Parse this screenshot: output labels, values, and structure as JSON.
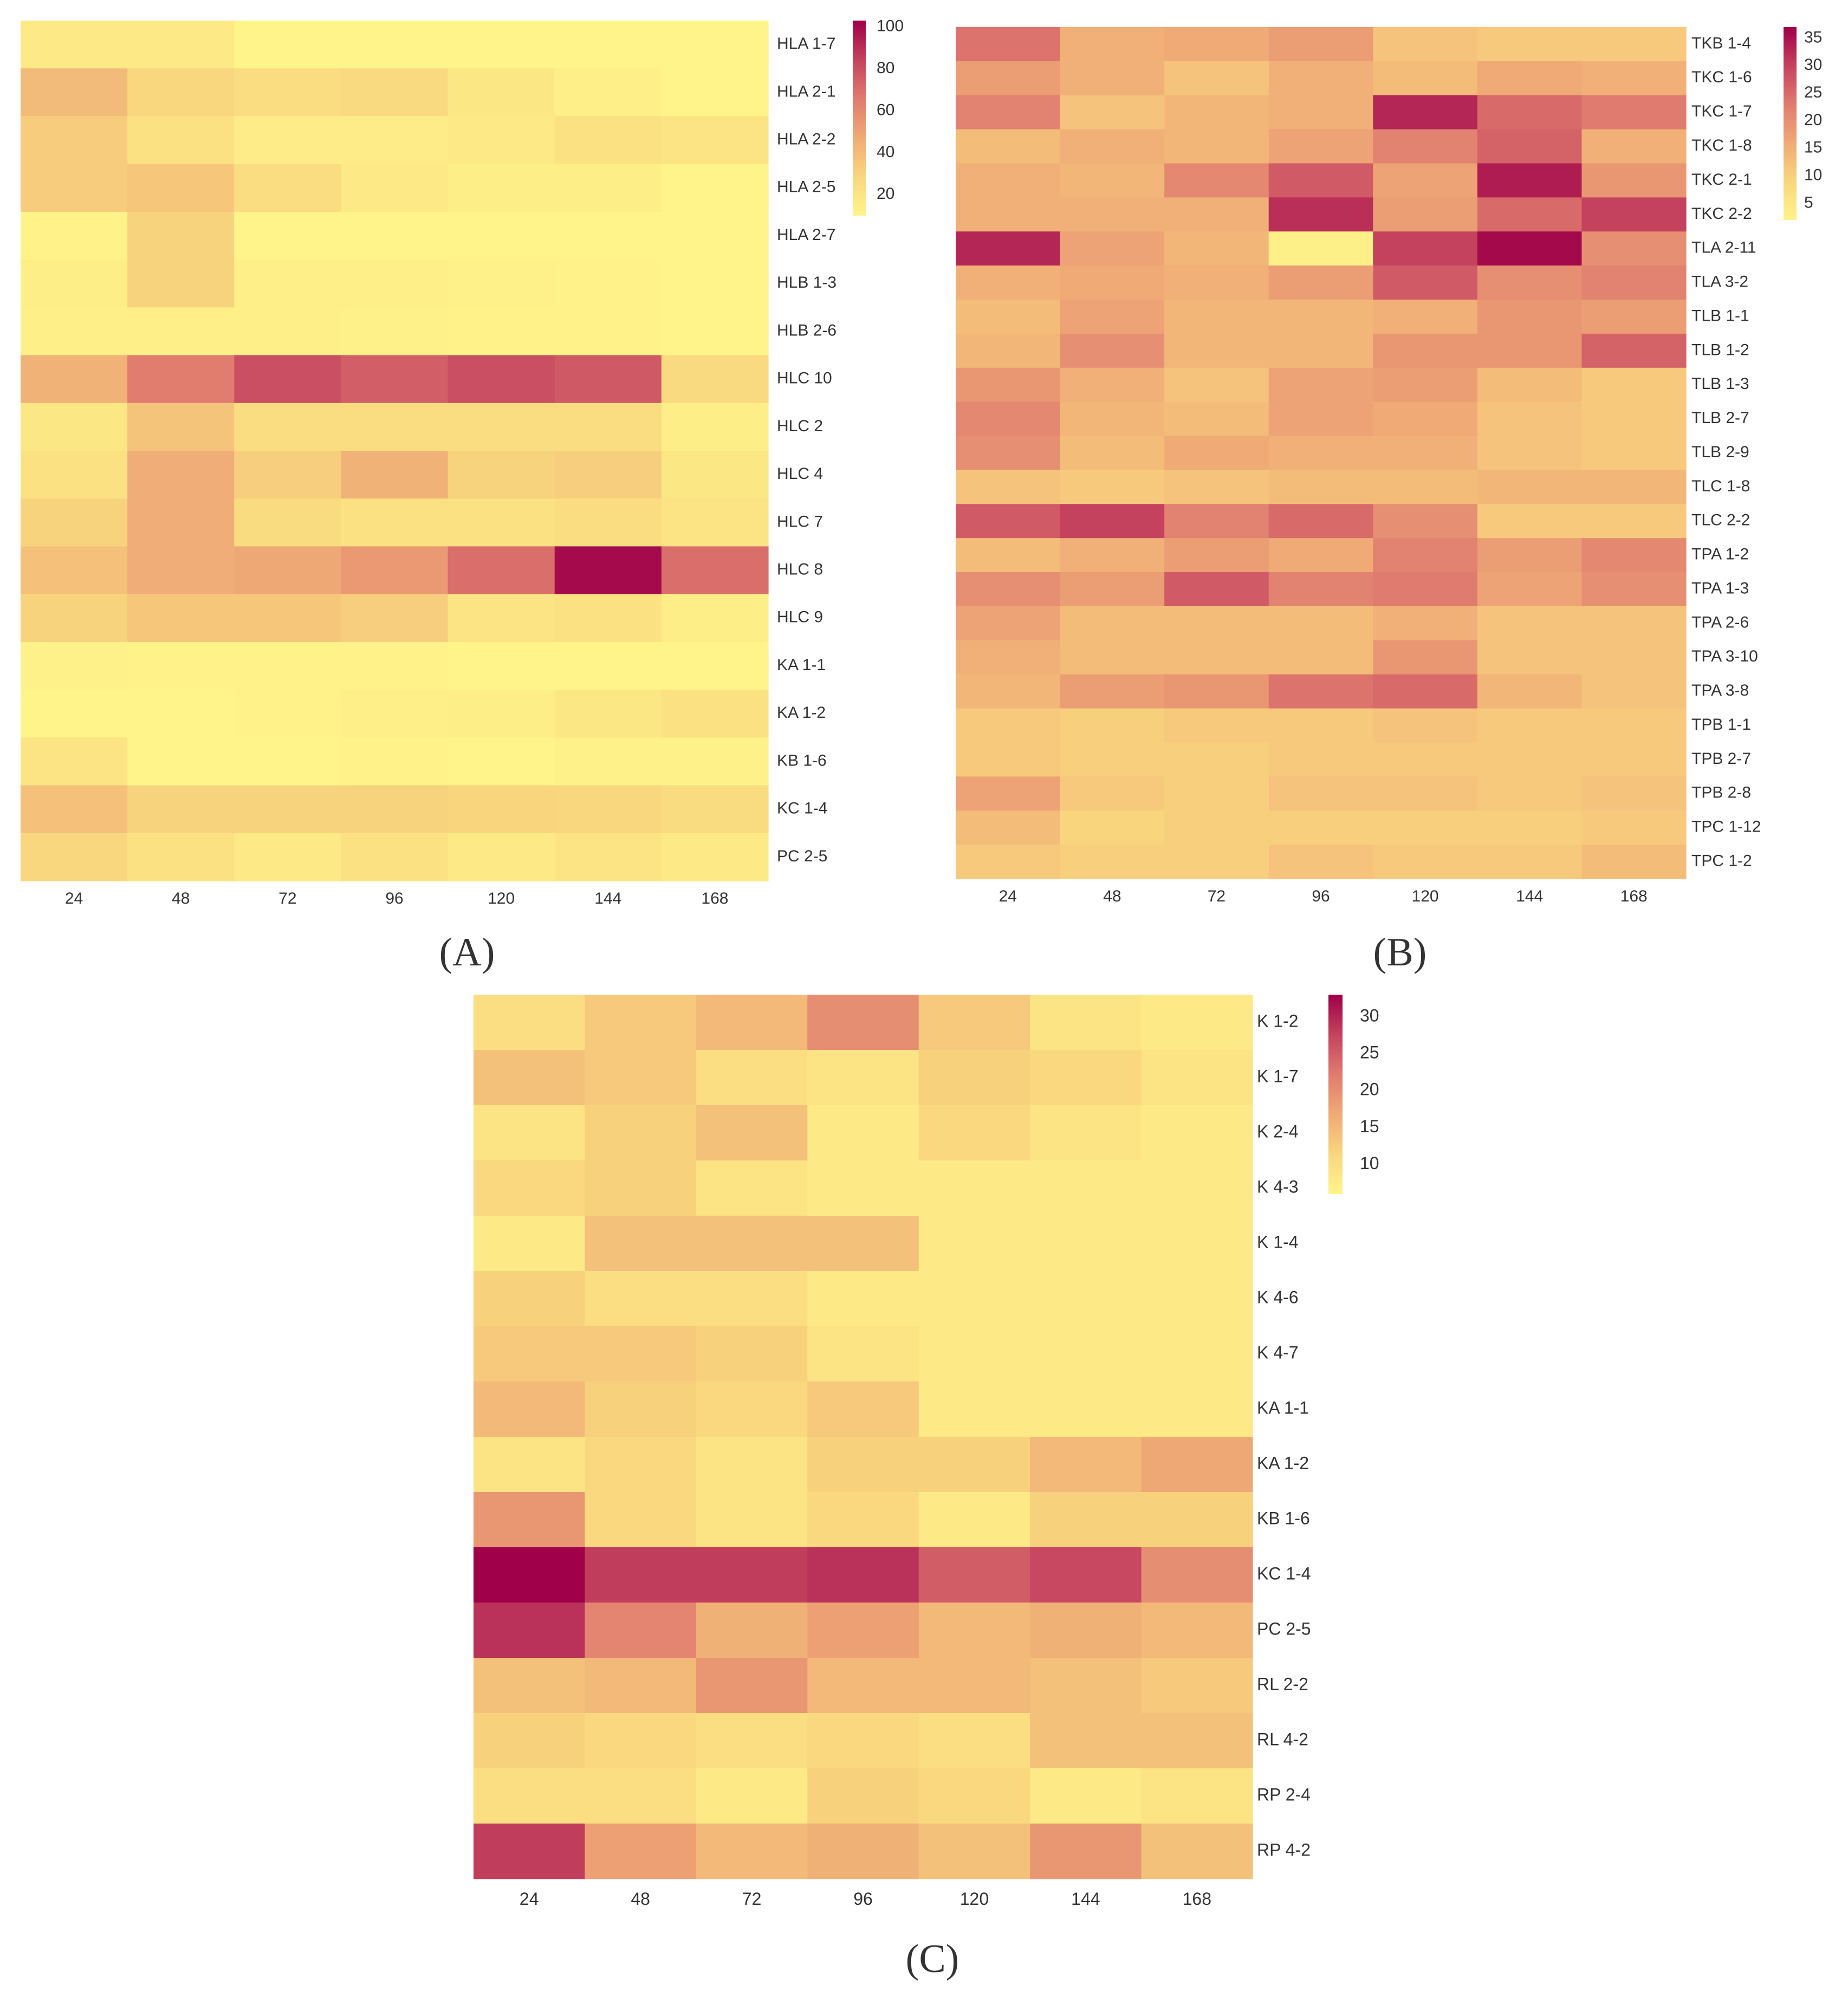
{
  "figure": {
    "panel_labels": [
      "(A)",
      "(B)",
      "(C)"
    ]
  },
  "colormap": [
    "#fff48a",
    "#f9d67e",
    "#efaa76",
    "#e07b6f",
    "#c4425e",
    "#9f0049"
  ],
  "chart_data": [
    {
      "type": "heatmap",
      "panel": "A",
      "x": [
        "24",
        "48",
        "72",
        "96",
        "120",
        "144",
        "168"
      ],
      "y": [
        "HLA 1-7",
        "HLA 2-1",
        "HLA 2-2",
        "HLA 2-5",
        "HLA 2-7",
        "HLB 1-3",
        "HLB 2-6",
        "HLC 10",
        "HLC 2",
        "HLC 4",
        "HLC 7",
        "HLC 8",
        "HLC 9",
        "KA 1-1",
        "KA 1-2",
        "KB 1-6",
        "KC 1-4",
        "PC 2-5"
      ],
      "values": [
        [
          16,
          16,
          10,
          9,
          9,
          9,
          9
        ],
        [
          40,
          28,
          24,
          26,
          18,
          13,
          10
        ],
        [
          33,
          22,
          15,
          15,
          16,
          22,
          20
        ],
        [
          33,
          35,
          24,
          17,
          14,
          14,
          9
        ],
        [
          11,
          30,
          9,
          9,
          9,
          9,
          9
        ],
        [
          14,
          30,
          13,
          13,
          12,
          11,
          10
        ],
        [
          13,
          13,
          13,
          12,
          11,
          11,
          10
        ],
        [
          44,
          65,
          80,
          75,
          80,
          77,
          26
        ],
        [
          18,
          36,
          24,
          24,
          24,
          24,
          14
        ],
        [
          22,
          46,
          32,
          44,
          30,
          32,
          18
        ],
        [
          30,
          46,
          25,
          22,
          22,
          24,
          20
        ],
        [
          38,
          46,
          48,
          54,
          70,
          100,
          70
        ],
        [
          30,
          35,
          35,
          32,
          20,
          22,
          14
        ],
        [
          12,
          11,
          11,
          11,
          8,
          8,
          8
        ],
        [
          10,
          10,
          11,
          13,
          14,
          18,
          22
        ],
        [
          20,
          10,
          8,
          11,
          9,
          12,
          12
        ],
        [
          38,
          30,
          30,
          30,
          29,
          28,
          25
        ],
        [
          28,
          22,
          16,
          22,
          16,
          20,
          16
        ]
      ],
      "colorbar": {
        "min": 10,
        "max": 103,
        "ticks": [
          20,
          40,
          60,
          80,
          100
        ]
      }
    },
    {
      "type": "heatmap",
      "panel": "B",
      "x": [
        "24",
        "48",
        "72",
        "96",
        "120",
        "144",
        "168"
      ],
      "y": [
        "TKB 1-4",
        "TKC 1-6",
        "TKC 1-7",
        "TKC 1-8",
        "TKC 2-1",
        "TKC 2-2",
        "TLA 2-11",
        "TLA 3-2",
        "TLB 1-1",
        "TLB 1-2",
        "TLB 1-3",
        "TLB 2-7",
        "TLB 2-9",
        "TLC 1-8",
        "TLC 2-2",
        "TPA 1-2",
        "TPA 1-3",
        "TPA 2-6",
        "TPA 3-10",
        "TPA 3-8",
        "TPB 1-1",
        "TPB 2-7",
        "TPB 2-8",
        "TPC 1-12",
        "TPC 1-2"
      ],
      "values": [
        [
          24,
          15,
          16,
          18,
          12,
          11,
          11
        ],
        [
          18,
          15,
          12,
          15,
          13,
          16,
          15
        ],
        [
          22,
          12,
          14,
          15,
          33,
          25,
          23
        ],
        [
          13,
          15,
          14,
          17,
          22,
          26,
          15
        ],
        [
          15,
          14,
          21,
          27,
          17,
          34,
          19
        ],
        [
          15,
          15,
          15,
          32,
          18,
          25,
          30
        ],
        [
          33,
          17,
          14,
          3,
          30,
          36,
          20
        ],
        [
          15,
          16,
          15,
          18,
          27,
          20,
          22
        ],
        [
          13,
          17,
          14,
          14,
          15,
          19,
          18
        ],
        [
          14,
          20,
          14,
          14,
          19,
          19,
          26
        ],
        [
          19,
          15,
          12,
          17,
          18,
          13,
          11
        ],
        [
          21,
          14,
          13,
          17,
          16,
          12,
          11
        ],
        [
          20,
          13,
          16,
          15,
          15,
          12,
          11
        ],
        [
          12,
          11,
          12,
          13,
          13,
          14,
          14
        ],
        [
          27,
          30,
          22,
          25,
          20,
          11,
          11
        ],
        [
          13,
          15,
          18,
          16,
          22,
          18,
          21
        ],
        [
          20,
          18,
          27,
          22,
          23,
          17,
          20
        ],
        [
          17,
          13,
          13,
          13,
          15,
          12,
          12
        ],
        [
          15,
          13,
          13,
          13,
          19,
          12,
          12
        ],
        [
          14,
          18,
          19,
          24,
          25,
          14,
          12
        ],
        [
          11,
          10,
          11,
          11,
          12,
          11,
          11
        ],
        [
          11,
          10,
          10,
          11,
          11,
          11,
          11
        ],
        [
          17,
          11,
          10,
          12,
          12,
          11,
          12
        ],
        [
          13,
          9,
          10,
          10,
          10,
          10,
          11
        ],
        [
          11,
          10,
          10,
          12,
          11,
          11,
          13
        ]
      ],
      "colorbar": {
        "min": 2,
        "max": 37,
        "ticks": [
          5,
          10,
          15,
          20,
          25,
          30,
          35
        ]
      }
    },
    {
      "type": "heatmap",
      "panel": "C",
      "x": [
        "24",
        "48",
        "72",
        "96",
        "120",
        "144",
        "168"
      ],
      "y": [
        "K 1-2",
        "K 1-7",
        "K 2-4",
        "K 4-3",
        "K 1-4",
        "K 4-6",
        "K 4-7",
        "KA 1-1",
        "KA 1-2",
        "KB 1-6",
        "KC 1-4",
        "PC 2-5",
        "RL 2-2",
        "RL 4-2",
        "RP 2-4",
        "RP 4-2"
      ],
      "values": [
        [
          10,
          13,
          15,
          20,
          13,
          9,
          8
        ],
        [
          14,
          13,
          10,
          9,
          12,
          11,
          9
        ],
        [
          9,
          12,
          14,
          8,
          11,
          9,
          8
        ],
        [
          11,
          12,
          9,
          8,
          8,
          8,
          8
        ],
        [
          8,
          14,
          14,
          14,
          8,
          8,
          8
        ],
        [
          12,
          10,
          10,
          8,
          8,
          8,
          8
        ],
        [
          13,
          13,
          12,
          9,
          8,
          8,
          8
        ],
        [
          15,
          12,
          11,
          13,
          8,
          8,
          8
        ],
        [
          9,
          11,
          9,
          12,
          12,
          15,
          17
        ],
        [
          19,
          11,
          9,
          11,
          8,
          12,
          12
        ],
        [
          34,
          28,
          28,
          29,
          25,
          27,
          20
        ],
        [
          29,
          21,
          16,
          18,
          15,
          16,
          15
        ],
        [
          14,
          15,
          19,
          15,
          15,
          14,
          13
        ],
        [
          12,
          11,
          10,
          11,
          10,
          14,
          14
        ],
        [
          10,
          10,
          8,
          12,
          11,
          8,
          9
        ],
        [
          28,
          18,
          15,
          16,
          14,
          19,
          14
        ]
      ],
      "colorbar": {
        "min": 6,
        "max": 33,
        "ticks": [
          10,
          15,
          20,
          25,
          30
        ]
      }
    }
  ]
}
